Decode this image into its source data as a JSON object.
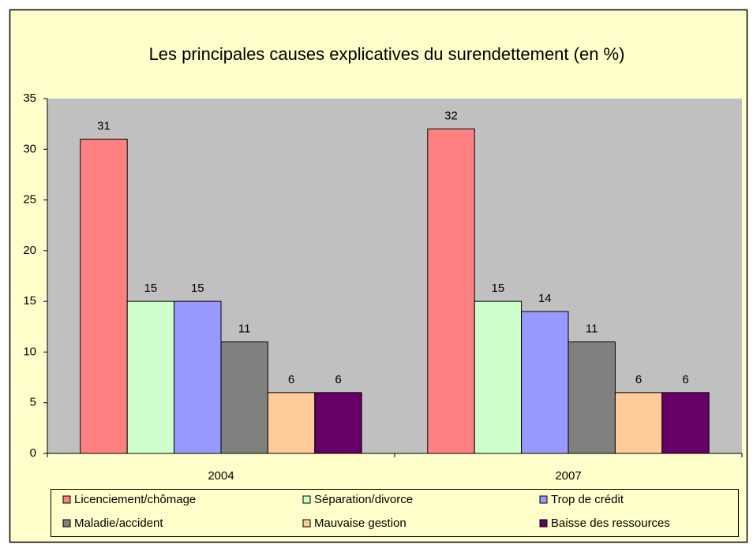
{
  "chart_data": {
    "type": "bar",
    "title": "Les principales causes explicatives du surendettement (en %)",
    "categories": [
      "2004",
      "2007"
    ],
    "series": [
      {
        "name": "Licenciement/chômage",
        "color": "#ff8080",
        "values": [
          31,
          32
        ]
      },
      {
        "name": "Séparation/divorce",
        "color": "#ccffcc",
        "values": [
          15,
          15
        ]
      },
      {
        "name": "Trop de crédit",
        "color": "#9999ff",
        "values": [
          15,
          14
        ]
      },
      {
        "name": "Maladie/accident",
        "color": "#808080",
        "values": [
          11,
          11
        ]
      },
      {
        "name": "Mauvaise gestion",
        "color": "#ffcc99",
        "values": [
          6,
          6
        ]
      },
      {
        "name": "Baisse des ressources",
        "color": "#660066",
        "values": [
          6,
          6
        ]
      }
    ],
    "ylim": [
      0,
      35
    ],
    "yticks": [
      0,
      5,
      10,
      15,
      20,
      25,
      30,
      35
    ],
    "grid": false,
    "legend": "bottom"
  }
}
